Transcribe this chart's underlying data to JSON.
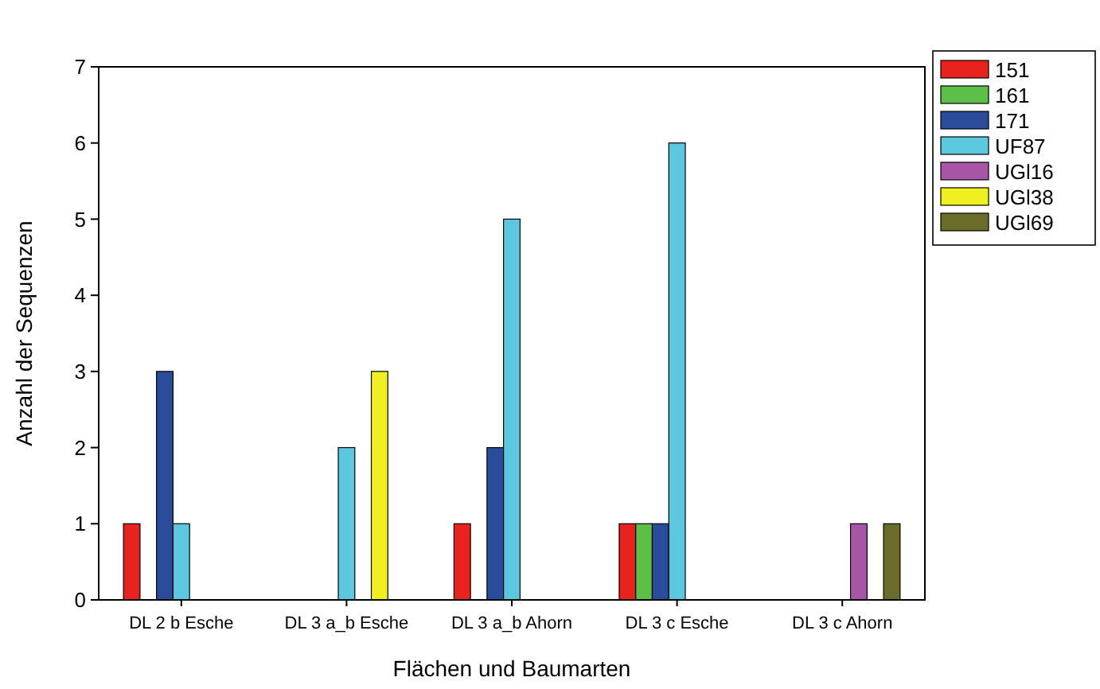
{
  "chart_data": {
    "type": "bar",
    "xlabel": "Flächen und Baumarten",
    "ylabel": "Anzahl der Sequenzen",
    "categories": [
      "DL 2 b Esche",
      "DL 3 a_b Esche",
      "DL 3 a_b Ahorn",
      "DL 3 c Esche",
      "DL 3 c Ahorn"
    ],
    "series": [
      {
        "name": "151",
        "color": "#e8221c",
        "values": [
          1,
          0,
          1,
          1,
          0
        ]
      },
      {
        "name": "161",
        "color": "#5cbf48",
        "values": [
          0,
          0,
          0,
          1,
          0
        ]
      },
      {
        "name": "171",
        "color": "#2b4c9b",
        "values": [
          3,
          0,
          2,
          1,
          0
        ]
      },
      {
        "name": "UF87",
        "color": "#5bc8e0",
        "values": [
          1,
          2,
          5,
          6,
          0
        ]
      },
      {
        "name": "UGl16",
        "color": "#a855a8",
        "values": [
          0,
          0,
          0,
          0,
          1
        ]
      },
      {
        "name": "UGl38",
        "color": "#f0f020",
        "values": [
          0,
          3,
          0,
          0,
          0
        ]
      },
      {
        "name": "UGl69",
        "color": "#6b6b2a",
        "values": [
          0,
          0,
          0,
          0,
          1
        ]
      }
    ],
    "ylim": [
      0,
      7
    ],
    "yticks": [
      0,
      1,
      2,
      3,
      4,
      5,
      6,
      7
    ],
    "legend": "right"
  }
}
